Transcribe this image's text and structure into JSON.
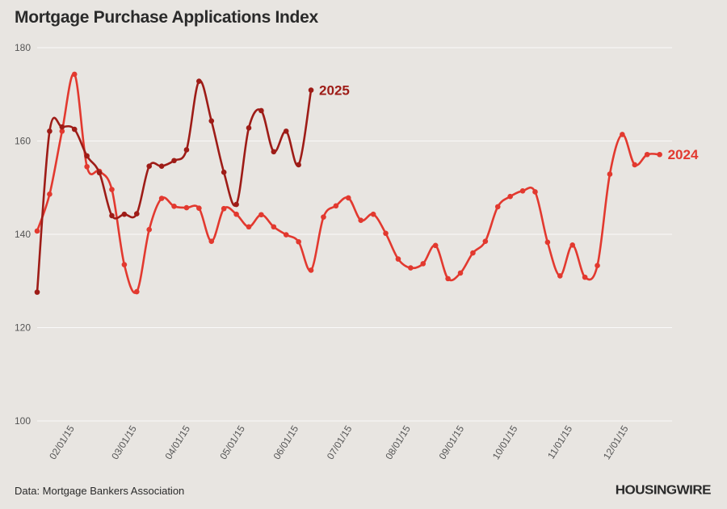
{
  "title": "Mortgage Purchase Applications Index",
  "source": "Data: Mortgage Bankers Association",
  "brand": "HOUSINGWIRE",
  "chart_data": {
    "type": "line",
    "title": "Mortgage Purchase Applications Index",
    "xlabel": "",
    "ylabel": "",
    "ylim": [
      100,
      180
    ],
    "yticks": [
      100,
      120,
      140,
      160,
      180
    ],
    "grid": true,
    "x_range": [
      0,
      51
    ],
    "x_ticks": [
      {
        "label": "02/01/15",
        "x": 3
      },
      {
        "label": "03/01/15",
        "x": 8
      },
      {
        "label": "04/01/15",
        "x": 12.3
      },
      {
        "label": "05/01/15",
        "x": 16.7
      },
      {
        "label": "06/01/15",
        "x": 21
      },
      {
        "label": "07/01/15",
        "x": 25.3
      },
      {
        "label": "08/01/15",
        "x": 30
      },
      {
        "label": "09/01/15",
        "x": 34.3
      },
      {
        "label": "10/01/15",
        "x": 38.6
      },
      {
        "label": "11/01/15",
        "x": 43
      },
      {
        "label": "12/01/15",
        "x": 47.5
      }
    ],
    "series": [
      {
        "name": "2024",
        "color": "#e2392f",
        "values": [
          140.7,
          148.6,
          162.1,
          174.3,
          154.5,
          153.5,
          149.6,
          133.5,
          127.7,
          141.0,
          147.7,
          146.0,
          145.7,
          145.6,
          138.5,
          145.5,
          144.3,
          141.6,
          144.2,
          141.6,
          139.9,
          138.4,
          132.3,
          143.7,
          146.1,
          147.8,
          143.0,
          144.3,
          140.2,
          134.7,
          132.8,
          133.7,
          137.6,
          130.5,
          131.7,
          136.0,
          138.5,
          145.9,
          148.1,
          149.3,
          149.1,
          138.3,
          131.1,
          137.7,
          130.8,
          133.3,
          152.9,
          161.4,
          154.9,
          157.1,
          157.1
        ]
      },
      {
        "name": "2025",
        "color": "#9e1c17",
        "values": [
          127.6,
          162.1,
          163.0,
          162.5,
          156.8,
          153.2,
          144.0,
          144.3,
          144.4,
          154.6,
          154.6,
          155.8,
          158.1,
          172.8,
          164.3,
          153.3,
          146.4,
          162.8,
          166.5,
          157.7,
          162.1,
          154.9,
          170.9
        ]
      }
    ]
  }
}
